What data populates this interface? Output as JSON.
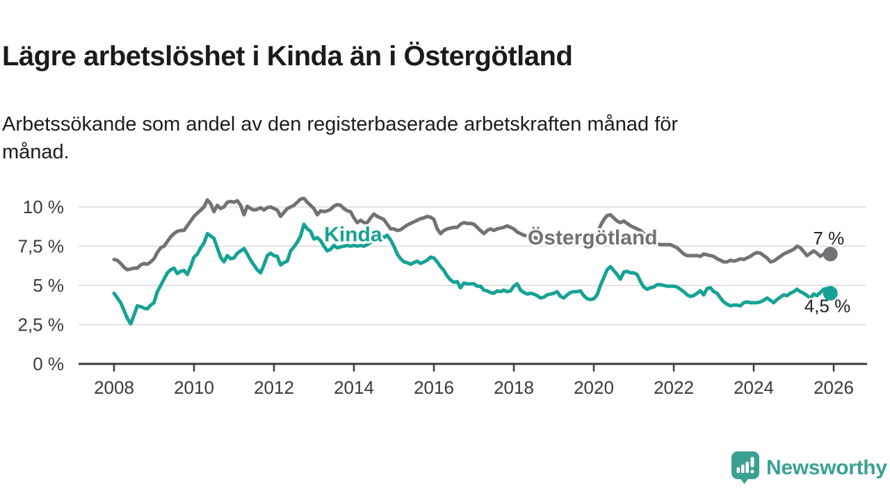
{
  "header": {
    "title": "Lägre arbetslöshet i Kinda än i Östergötland",
    "subtitle": "Arbetssökande som andel av den registerbaserade arbetskraften månad för månad.",
    "subtitle_lines": [
      "Arbetssökande som andel av den registerbaserade arbetskraften månad för",
      "månad."
    ]
  },
  "branding": {
    "name": "Newsworthy",
    "icon": "newsworthy-chart-bubble-icon",
    "color": "#3aa192"
  },
  "chart_data": {
    "type": "line",
    "x_unit": "year, monthly data points",
    "x_start": 2008.0,
    "x_step": 0.0833333,
    "x_ticks": [
      2008,
      2010,
      2012,
      2014,
      2016,
      2018,
      2020,
      2022,
      2024,
      2026
    ],
    "x_ticklabels": [
      "2008",
      "2010",
      "2012",
      "2014",
      "2016",
      "2018",
      "2020",
      "2022",
      "2024",
      "2026"
    ],
    "y_ticks": [
      0,
      2.5,
      5,
      7.5,
      10
    ],
    "y_ticklabels": [
      "0 %",
      "2,5 %",
      "5 %",
      "7,5 %",
      "10 %"
    ],
    "ylim": [
      0,
      11
    ],
    "xlim_years": [
      2007.1,
      2026.8
    ],
    "grid": "horizontal",
    "legend_position": "inline-series-labels",
    "colors": {
      "axis": "#3a3a3a",
      "grid": "#d9d9d9",
      "tick_label": "#3a3a3a",
      "end_label": "#222222",
      "background": "#ffffff"
    },
    "series": [
      {
        "name": "Östergötland",
        "color": "#717275",
        "label_pos": [
          2019.97,
          7.6
        ],
        "end_label": "7 %",
        "end_value": 7.0,
        "end_label_dx": 20,
        "end_label_dy": -14,
        "values": [
          6.65,
          6.6,
          6.4,
          6.15,
          6.0,
          6.05,
          6.1,
          6.1,
          6.3,
          6.4,
          6.35,
          6.5,
          6.7,
          7.1,
          7.4,
          7.5,
          7.8,
          8.1,
          8.3,
          8.45,
          8.5,
          8.5,
          8.8,
          9.1,
          9.4,
          9.6,
          9.8,
          10.0,
          10.45,
          10.2,
          9.7,
          10.1,
          9.9,
          10.0,
          10.3,
          10.35,
          10.3,
          10.4,
          10.1,
          9.5,
          10.05,
          9.9,
          9.8,
          9.85,
          9.95,
          9.8,
          9.95,
          10.0,
          9.9,
          9.8,
          9.4,
          9.65,
          9.9,
          10.0,
          10.1,
          10.3,
          10.5,
          10.55,
          10.3,
          10.1,
          9.9,
          9.5,
          9.75,
          9.7,
          9.75,
          9.85,
          10.05,
          10.15,
          10.1,
          9.9,
          9.75,
          9.7,
          9.3,
          9.0,
          9.15,
          9.0,
          9.0,
          9.3,
          9.55,
          9.4,
          9.3,
          9.2,
          8.9,
          8.6,
          8.6,
          8.5,
          8.55,
          8.7,
          8.85,
          8.95,
          9.05,
          9.15,
          9.25,
          9.3,
          9.4,
          9.35,
          9.2,
          8.6,
          8.3,
          8.5,
          8.6,
          8.65,
          8.7,
          8.7,
          8.9,
          9.0,
          8.95,
          8.95,
          8.9,
          8.7,
          8.5,
          8.3,
          8.5,
          8.6,
          8.5,
          8.6,
          8.65,
          8.7,
          8.8,
          8.7,
          8.6,
          8.4,
          8.3,
          8.2,
          8.15,
          8.1,
          8.05,
          8.0,
          8.0,
          7.95,
          7.95,
          7.95,
          7.95,
          7.9,
          7.85,
          7.85,
          7.9,
          7.95,
          7.95,
          8.0,
          8.0,
          8.05,
          8.0,
          7.95,
          8.1,
          8.3,
          8.8,
          9.2,
          9.45,
          9.5,
          9.3,
          9.1,
          9.0,
          9.1,
          8.95,
          8.8,
          8.7,
          8.6,
          8.5,
          8.3,
          8.1,
          7.9,
          7.75,
          7.65,
          7.6,
          7.6,
          7.6,
          7.6,
          7.5,
          7.4,
          7.2,
          7.0,
          6.9,
          6.9,
          6.9,
          6.9,
          6.85,
          7.0,
          6.95,
          6.9,
          6.85,
          6.7,
          6.6,
          6.5,
          6.5,
          6.6,
          6.55,
          6.6,
          6.7,
          6.65,
          6.75,
          6.85,
          7.0,
          7.1,
          7.05,
          6.9,
          6.75,
          6.5,
          6.55,
          6.7,
          6.85,
          7.0,
          7.1,
          7.2,
          7.3,
          7.5,
          7.4,
          7.15,
          6.9,
          7.05,
          7.2,
          7.05,
          6.85,
          7.0,
          7.05,
          7.0
        ]
      },
      {
        "name": "Kinda",
        "color": "#16a294",
        "label_pos": [
          2013.98,
          7.8
        ],
        "end_label": "4,5 %",
        "end_value": 4.5,
        "end_label_dx": 29,
        "end_label_dy": 27,
        "values": [
          4.5,
          4.2,
          3.9,
          3.4,
          2.9,
          2.55,
          3.1,
          3.7,
          3.65,
          3.55,
          3.5,
          3.75,
          3.9,
          4.6,
          5.0,
          5.4,
          5.8,
          6.0,
          6.1,
          5.75,
          5.9,
          5.95,
          5.7,
          6.2,
          6.8,
          7.0,
          7.4,
          7.7,
          8.3,
          8.15,
          8.0,
          7.4,
          6.8,
          6.5,
          6.9,
          6.7,
          6.75,
          7.05,
          7.2,
          7.35,
          7.0,
          6.6,
          6.3,
          6.0,
          5.8,
          6.3,
          6.9,
          7.05,
          6.9,
          6.85,
          6.3,
          6.45,
          6.55,
          7.2,
          7.45,
          7.75,
          8.15,
          8.9,
          8.6,
          8.45,
          7.95,
          8.05,
          7.85,
          7.5,
          7.2,
          7.3,
          7.55,
          7.4,
          7.45,
          7.5,
          7.55,
          7.5,
          7.55,
          7.5,
          7.55,
          7.5,
          7.6,
          7.75,
          7.95,
          8.1,
          8.2,
          8.05,
          8.2,
          7.9,
          7.5,
          7.0,
          6.7,
          6.5,
          6.45,
          6.35,
          6.45,
          6.55,
          6.4,
          6.5,
          6.6,
          6.8,
          6.75,
          6.5,
          6.2,
          5.95,
          5.6,
          5.35,
          5.2,
          5.25,
          4.85,
          5.15,
          5.1,
          5.1,
          5.1,
          4.95,
          4.95,
          4.7,
          4.65,
          4.55,
          4.5,
          4.65,
          4.6,
          4.7,
          4.6,
          4.65,
          4.95,
          5.1,
          4.7,
          4.55,
          4.45,
          4.5,
          4.45,
          4.35,
          4.2,
          4.25,
          4.4,
          4.45,
          4.5,
          4.6,
          4.3,
          4.2,
          4.4,
          4.55,
          4.6,
          4.6,
          4.65,
          4.35,
          4.15,
          4.1,
          4.15,
          4.4,
          5.0,
          5.5,
          6.0,
          6.2,
          5.95,
          5.7,
          5.4,
          5.85,
          5.9,
          5.8,
          5.8,
          5.7,
          5.25,
          4.9,
          4.75,
          4.85,
          4.9,
          5.05,
          5.05,
          5.0,
          4.95,
          4.95,
          4.95,
          4.9,
          4.75,
          4.6,
          4.4,
          4.3,
          4.35,
          4.5,
          4.65,
          4.4,
          4.8,
          4.85,
          4.6,
          4.5,
          4.2,
          3.95,
          3.8,
          3.7,
          3.75,
          3.75,
          3.7,
          3.9,
          3.95,
          3.9,
          3.9,
          3.9,
          3.95,
          4.05,
          4.2,
          4.05,
          3.9,
          4.1,
          4.25,
          4.4,
          4.35,
          4.5,
          4.6,
          4.75,
          4.6,
          4.5,
          4.35,
          4.2,
          4.45,
          4.35,
          4.55,
          4.75,
          4.8,
          4.5
        ]
      }
    ]
  }
}
